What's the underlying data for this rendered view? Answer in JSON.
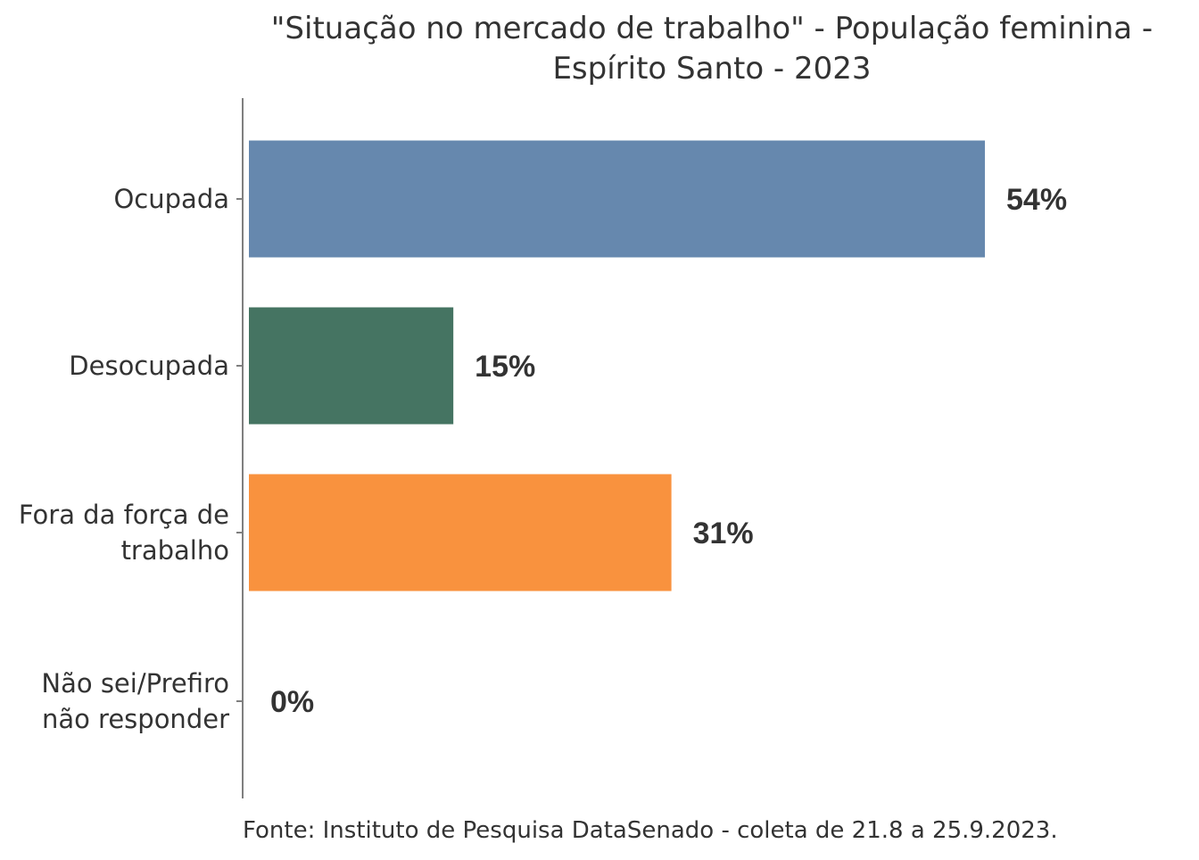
{
  "chart_data": {
    "type": "bar",
    "orientation": "horizontal",
    "title": "\"Situação no mercado de trabalho\" - População feminina - Espírito Santo - 2023",
    "title_lines": [
      "\"Situação no mercado de trabalho\" - População feminina -",
      "Espírito Santo - 2023"
    ],
    "categories": [
      "Ocupada",
      "Desocupada",
      "Fora da força de trabalho",
      "Não sei/Prefiro não responder"
    ],
    "category_lines": [
      [
        "Ocupada"
      ],
      [
        "Desocupada"
      ],
      [
        "Fora da força de",
        "trabalho"
      ],
      [
        "Não sei/Prefiro",
        "não responder"
      ]
    ],
    "values": [
      54,
      15,
      31,
      0
    ],
    "value_labels": [
      "54%",
      "15%",
      "31%",
      "0%"
    ],
    "colors": [
      "#6688ae",
      "#457462",
      "#f9923e",
      "#cccccc"
    ],
    "xlim": [
      0,
      62
    ],
    "xlabel": "",
    "ylabel": "",
    "grid": false,
    "legend": "none",
    "source": "Fonte: Instituto de Pesquisa DataSenado - coleta de 21.8 a 25.9.2023."
  }
}
